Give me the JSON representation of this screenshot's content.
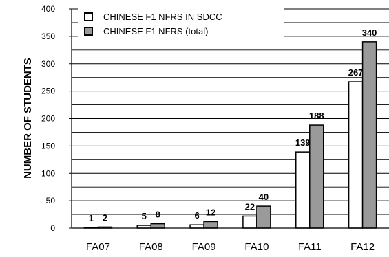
{
  "chart_data": {
    "type": "bar",
    "title": "",
    "xlabel": "",
    "ylabel": "NUMBER OF STUDENTS",
    "categories": [
      "FA07",
      "FA08",
      "FA09",
      "FA10",
      "FA11",
      "FA12"
    ],
    "series": [
      {
        "name": "CHINESE F1 NFRS IN SDCC",
        "values": [
          1,
          5,
          6,
          22,
          139,
          267
        ],
        "labels": [
          "1",
          "5",
          "6",
          "22",
          "139",
          "267"
        ],
        "color": "#ffffff"
      },
      {
        "name": "CHINESE F1 NFRS (total)",
        "values": [
          2,
          8,
          12,
          40,
          188,
          340
        ],
        "labels": [
          "2",
          "8",
          "12",
          "40",
          "188",
          "340"
        ],
        "color": "#9a9a9a"
      }
    ],
    "ylim": [
      0,
      400
    ],
    "yticks": [
      0,
      50,
      100,
      150,
      200,
      250,
      300,
      350,
      400
    ],
    "ytick_labels": [
      "0",
      "50",
      "100",
      "150",
      "200",
      "250",
      "300",
      "350",
      "400"
    ],
    "grid": true,
    "legend_position": "top-left"
  }
}
